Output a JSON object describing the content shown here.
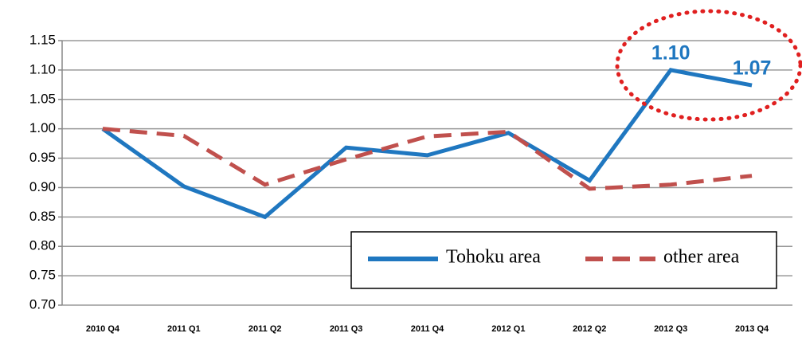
{
  "chart_data": {
    "type": "line",
    "categories": [
      "2010 Q4",
      "2011 Q1",
      "2011 Q2",
      "2011 Q3",
      "2011 Q4",
      "2012 Q1",
      "2012 Q2",
      "2012 Q3",
      "2013 Q4"
    ],
    "series": [
      {
        "name": "Tohoku area",
        "color": "#1f77c0",
        "dash": "solid",
        "values": [
          1.0,
          0.902,
          0.85,
          0.968,
          0.955,
          0.993,
          0.912,
          1.1,
          1.074
        ],
        "value_labels": [
          null,
          null,
          null,
          null,
          null,
          null,
          null,
          "1.10",
          "1.07"
        ]
      },
      {
        "name": "other area",
        "color": "#c0504d",
        "dash": "dashed",
        "values": [
          1.0,
          0.988,
          0.905,
          0.948,
          0.987,
          0.995,
          0.898,
          0.905,
          0.92
        ]
      }
    ],
    "ylim": [
      0.7,
      1.15
    ],
    "yticks": [
      {
        "value": 0.7,
        "label": "0.70"
      },
      0.75,
      {
        "value": 0.8,
        "label": "0.80"
      },
      0.85,
      {
        "value": 0.9,
        "label": "0.90"
      },
      0.95,
      {
        "value": 1.0,
        "label": "1.00"
      },
      1.05,
      {
        "value": 1.1,
        "label": "1.10"
      },
      1.15
    ],
    "grid": true
  }
}
